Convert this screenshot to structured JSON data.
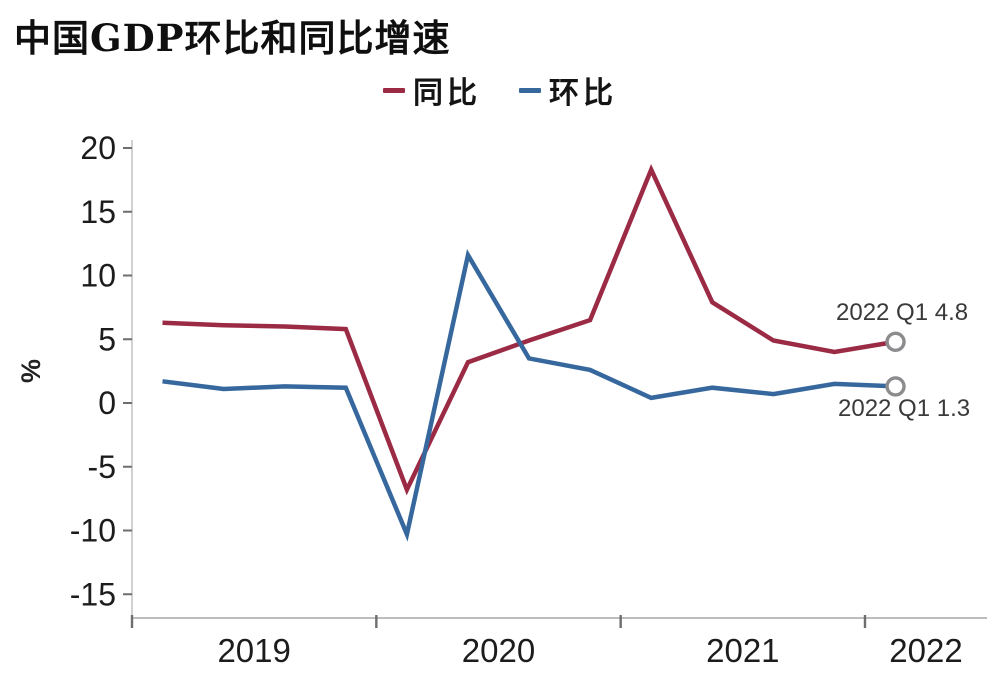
{
  "title": "中国GDP环比和同比增速",
  "legend": {
    "items": [
      {
        "label": "同比",
        "color": "#9B2B45"
      },
      {
        "label": "环比",
        "color": "#36689E"
      }
    ]
  },
  "annotations": {
    "yoy": "2022 Q1 4.8",
    "qoq": "2022 Q1 1.3"
  },
  "axis": {
    "y_unit": "%"
  },
  "colors": {
    "yoy_line": "#9B2B45",
    "qoq_line": "#36689E",
    "end_marker_ring": "#8C8C8E",
    "axis_line": "#BDBDBD",
    "tick_mark": "#6E6E6E",
    "tick_label": "#1C1C1C",
    "annotation_text": "#3A3A3A",
    "background": "#FFFFFF"
  },
  "chart_data": {
    "type": "line",
    "title": "中国GDP环比和同比增速",
    "xlabel": "",
    "ylabel": "%",
    "categories": [
      "2019Q1",
      "2019Q2",
      "2019Q3",
      "2019Q4",
      "2020Q1",
      "2020Q2",
      "2020Q3",
      "2020Q4",
      "2021Q1",
      "2021Q2",
      "2021Q3",
      "2021Q4",
      "2022Q1"
    ],
    "series": [
      {
        "key": "yoy",
        "name": "同比",
        "color": "#9B2B45",
        "values": [
          6.3,
          6.1,
          6.0,
          5.8,
          -6.8,
          3.2,
          4.9,
          6.5,
          18.3,
          7.9,
          4.9,
          4.0,
          4.8
        ],
        "end_label": "2022 Q1 4.8"
      },
      {
        "key": "qoq",
        "name": "环比",
        "color": "#36689E",
        "values": [
          1.7,
          1.1,
          1.3,
          1.2,
          -10.3,
          11.6,
          3.5,
          2.6,
          0.4,
          1.2,
          0.7,
          1.5,
          1.3
        ],
        "end_label": "2022 Q1 1.3"
      }
    ],
    "yticks": [
      20,
      15,
      10,
      5,
      0,
      -5,
      -10,
      -15
    ],
    "xticks": [
      "2019",
      "2020",
      "2021",
      "2022"
    ],
    "ylim": [
      -17.5,
      22
    ],
    "grid": false,
    "legend_position": "top-center",
    "end_markers": "open-circle"
  }
}
